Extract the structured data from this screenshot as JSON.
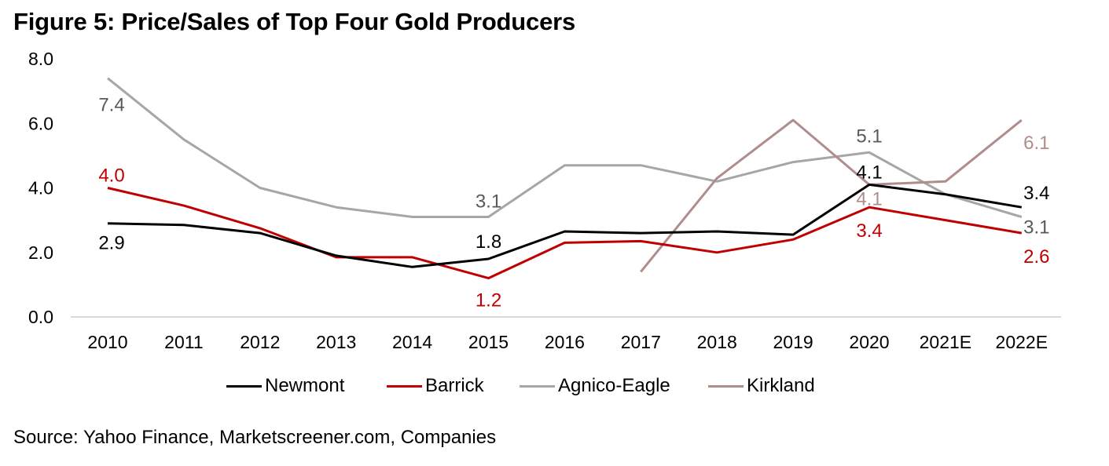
{
  "figure": {
    "title": "Figure 5: Price/Sales of Top Four Gold Producers",
    "source": "Source: Yahoo Finance, Marketscreener.com, Companies"
  },
  "chart_data": {
    "type": "line",
    "title": "Figure 5: Price/Sales of Top Four Gold Producers",
    "xlabel": "",
    "ylabel": "",
    "ylim": [
      0,
      8
    ],
    "yticks": [
      "0.0",
      "2.0",
      "4.0",
      "6.0",
      "8.0"
    ],
    "ytick_values": [
      0,
      2,
      4,
      6,
      8
    ],
    "categories": [
      "2010",
      "2011",
      "2012",
      "2013",
      "2014",
      "2015",
      "2016",
      "2017",
      "2018",
      "2019",
      "2020",
      "2021E",
      "2022E"
    ],
    "grid": false,
    "legend_position": "bottom",
    "series": [
      {
        "name": "Newmont",
        "color": "#000000",
        "values": [
          2.9,
          2.85,
          2.6,
          1.9,
          1.55,
          1.8,
          2.65,
          2.6,
          2.65,
          2.55,
          4.1,
          3.8,
          3.4
        ]
      },
      {
        "name": "Barrick",
        "color": "#c00000",
        "values": [
          4.0,
          3.45,
          2.75,
          1.85,
          1.85,
          1.2,
          2.3,
          2.35,
          2.0,
          2.4,
          3.4,
          3.0,
          2.6
        ]
      },
      {
        "name": "Agnico-Eagle",
        "color": "#a6a6a6",
        "values": [
          7.4,
          5.5,
          4.0,
          3.4,
          3.1,
          3.1,
          4.7,
          4.7,
          4.2,
          4.8,
          5.1,
          3.8,
          3.1
        ]
      },
      {
        "name": "Kirkland",
        "color": "#b08c8c",
        "values": [
          null,
          null,
          null,
          null,
          null,
          null,
          null,
          1.4,
          4.3,
          6.1,
          4.1,
          4.2,
          6.1
        ]
      }
    ],
    "annotations": [
      {
        "series": "Agnico-Eagle",
        "category": "2010",
        "text": "7.4",
        "color": "#595959",
        "place": "below"
      },
      {
        "series": "Barrick",
        "category": "2010",
        "text": "4.0",
        "color": "#c00000",
        "place": "above"
      },
      {
        "series": "Newmont",
        "category": "2010",
        "text": "2.9",
        "color": "#000000",
        "place": "below"
      },
      {
        "series": "Agnico-Eagle",
        "category": "2015",
        "text": "3.1",
        "color": "#595959",
        "place": "above"
      },
      {
        "series": "Newmont",
        "category": "2015",
        "text": "1.8",
        "color": "#000000",
        "place": "above"
      },
      {
        "series": "Barrick",
        "category": "2015",
        "text": "1.2",
        "color": "#c00000",
        "place": "below"
      },
      {
        "series": "Agnico-Eagle",
        "category": "2020",
        "text": "5.1",
        "color": "#595959",
        "place": "above"
      },
      {
        "series": "Newmont",
        "category": "2020",
        "text": "4.1",
        "color": "#000000",
        "place": "above"
      },
      {
        "series": "Kirkland",
        "category": "2020",
        "text": "4.1",
        "color": "#b08c8c",
        "place": "below"
      },
      {
        "series": "Barrick",
        "category": "2020",
        "text": "3.4",
        "color": "#c00000",
        "place": "below"
      },
      {
        "series": "Kirkland",
        "category": "2022E",
        "text": "6.1",
        "color": "#b08c8c",
        "place": "below"
      },
      {
        "series": "Newmont",
        "category": "2022E",
        "text": "3.4",
        "color": "#000000",
        "place": "above"
      },
      {
        "series": "Agnico-Eagle",
        "category": "2022E",
        "text": "3.1",
        "color": "#595959",
        "place": "below"
      },
      {
        "series": "Barrick",
        "category": "2022E",
        "text": "2.6",
        "color": "#c00000",
        "place": "below"
      }
    ]
  }
}
